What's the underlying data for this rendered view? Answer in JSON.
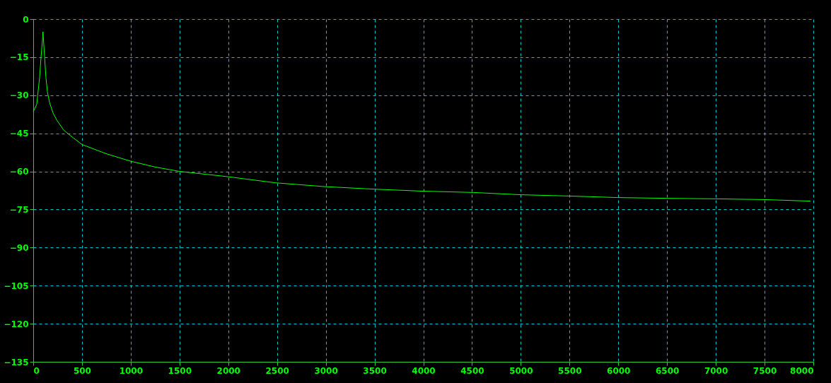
{
  "chart_data": {
    "type": "line",
    "x": [
      0,
      36,
      65,
      80,
      94,
      100,
      116,
      130,
      145,
      167,
      203,
      240,
      310,
      384,
      500,
      746,
      1000,
      1254,
      1500,
      1978,
      2486,
      2993,
      3500,
      4007,
      4514,
      5000,
      5500,
      5986,
      6493,
      6986,
      7493,
      7971
    ],
    "series": [
      {
        "color": "#00ff00",
        "values": [
          -36.5,
          -33.6,
          -23,
          -15,
          -8.6,
          -5,
          -14.7,
          -23,
          -28.6,
          -32.8,
          -37,
          -39.7,
          -43.6,
          -46,
          -49.4,
          -53,
          -56,
          -58.3,
          -60,
          -62,
          -64.5,
          -66,
          -67,
          -67.8,
          -68.3,
          -69.2,
          -69.7,
          -70.3,
          -70.6,
          -70.8,
          -71.1,
          -71.7
        ]
      }
    ],
    "xlim": [
      0,
      8000
    ],
    "xticks": [
      0,
      500,
      1000,
      1500,
      2000,
      2500,
      3000,
      3500,
      4000,
      4500,
      5000,
      5500,
      6000,
      6500,
      7000,
      7500,
      8000
    ],
    "ylim": [
      -135,
      0
    ],
    "yticks": [
      0,
      -15,
      -30,
      -45,
      -60,
      -75,
      -90,
      -105,
      -120,
      -135
    ],
    "grid": true,
    "legend": false,
    "marker": "none",
    "line_style": "solid"
  }
}
